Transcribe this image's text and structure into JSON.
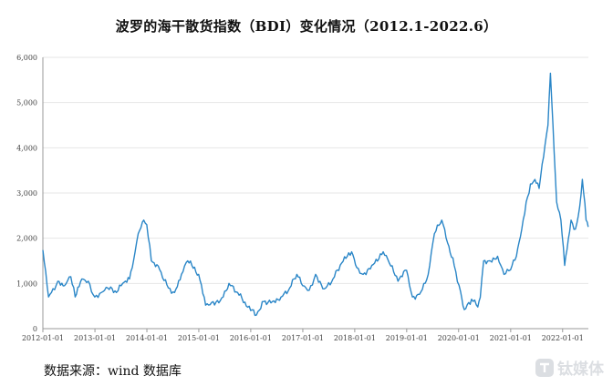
{
  "title": "波罗的海干散货指数（BDI）变化情况（2012.1-2022.6）",
  "source": "数据来源：wind 数据库",
  "watermark": {
    "text": "钛媒体",
    "logo_icon": "tmt-logo-icon"
  },
  "colors": {
    "line": "#2a86c7",
    "grid": "#e6e6e6",
    "axis": "#999999"
  },
  "chart_data": {
    "type": "line",
    "title": "波罗的海干散货指数（BDI）变化情况（2012.1-2022.6）",
    "xlabel": "",
    "ylabel": "",
    "ylim": [
      0,
      6000
    ],
    "xlim": [
      "2012-01-01",
      "2022-07-01"
    ],
    "grid": "horizontal",
    "legend": "none",
    "y_ticks": [
      0,
      1000,
      2000,
      3000,
      4000,
      5000,
      6000
    ],
    "y_tick_labels": [
      "0",
      "1,000",
      "2,000",
      "3,000",
      "4,000",
      "5,000",
      "6,000"
    ],
    "x_ticks": [
      "2012-01-01",
      "2013-01-01",
      "2014-01-01",
      "2015-01-01",
      "2016-01-01",
      "2017-01-01",
      "2018-01-01",
      "2019-01-01",
      "2020-01-01",
      "2021-01-01",
      "2022-01-01"
    ],
    "series": [
      {
        "x": [
          "2012-01-01",
          "2012-02-10",
          "2012-03-01",
          "2012-04-15",
          "2012-06-01",
          "2012-07-15",
          "2012-08-15",
          "2012-10-01",
          "2012-11-15",
          "2012-12-31",
          "2013-02-15",
          "2013-04-01",
          "2013-06-01",
          "2013-07-15",
          "2013-09-01",
          "2013-10-10",
          "2013-11-01",
          "2013-12-10",
          "2013-12-31",
          "2014-02-01",
          "2014-04-01",
          "2014-06-01",
          "2014-07-15",
          "2014-09-01",
          "2014-10-15",
          "2014-12-31",
          "2015-02-18",
          "2015-04-01",
          "2015-06-01",
          "2015-08-01",
          "2015-10-01",
          "2015-12-01",
          "2016-02-10",
          "2016-04-01",
          "2016-06-01",
          "2016-08-01",
          "2016-10-01",
          "2016-11-20",
          "2016-12-31",
          "2017-02-15",
          "2017-04-01",
          "2017-06-01",
          "2017-08-01",
          "2017-10-01",
          "2017-12-10",
          "2018-01-15",
          "2018-03-01",
          "2018-05-01",
          "2018-07-20",
          "2018-09-01",
          "2018-11-01",
          "2018-12-31",
          "2019-02-10",
          "2019-04-01",
          "2019-06-01",
          "2019-07-15",
          "2019-09-05",
          "2019-10-15",
          "2019-12-01",
          "2020-01-15",
          "2020-02-10",
          "2020-04-01",
          "2020-05-15",
          "2020-06-01",
          "2020-06-25",
          "2020-08-01",
          "2020-10-01",
          "2020-11-15",
          "2020-12-31",
          "2021-02-10",
          "2021-03-20",
          "2021-04-20",
          "2021-05-20",
          "2021-06-20",
          "2021-07-20",
          "2021-08-20",
          "2021-09-20",
          "2021-10-07",
          "2021-10-25",
          "2021-11-20",
          "2021-12-20",
          "2022-01-15",
          "2022-02-01",
          "2022-03-01",
          "2022-04-01",
          "2022-05-01",
          "2022-05-20",
          "2022-06-15",
          "2022-06-30"
        ],
        "values": [
          1738,
          700,
          800,
          1050,
          950,
          1150,
          700,
          1100,
          1050,
          700,
          800,
          900,
          800,
          1000,
          1100,
          1700,
          2100,
          2400,
          2300,
          1500,
          1300,
          900,
          800,
          1200,
          1500,
          1200,
          520,
          580,
          620,
          1000,
          800,
          500,
          300,
          600,
          600,
          700,
          900,
          1200,
          950,
          850,
          1200,
          880,
          1100,
          1450,
          1700,
          1350,
          1200,
          1400,
          1700,
          1450,
          1050,
          1290,
          700,
          760,
          1200,
          2100,
          2400,
          1900,
          1400,
          820,
          420,
          650,
          480,
          690,
          1500,
          1500,
          1600,
          1200,
          1300,
          1600,
          2200,
          2800,
          3200,
          3300,
          3100,
          3800,
          4500,
          5650,
          4500,
          2800,
          2400,
          1400,
          1750,
          2400,
          2200,
          2700,
          3300,
          2400,
          2250
        ]
      }
    ]
  }
}
